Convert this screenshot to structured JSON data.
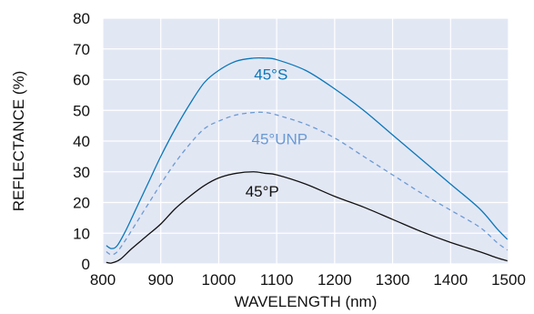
{
  "chart_data": {
    "type": "line",
    "title": "",
    "xlabel": "WAVELENGTH (nm)",
    "ylabel": "REFLECTANCE (%)",
    "xlim": [
      800,
      1500
    ],
    "ylim": [
      0,
      80
    ],
    "xticks": [
      800,
      900,
      1000,
      1100,
      1200,
      1300,
      1400,
      1500
    ],
    "yticks": [
      0,
      10,
      20,
      30,
      40,
      50,
      60,
      70,
      80
    ],
    "grid": true,
    "background_color": "#e2e7f4",
    "grid_color": "#ffffff",
    "series": [
      {
        "name": "45°S",
        "color": "#0b78b9",
        "dash": "solid",
        "label_at": [
          1090,
          60
        ],
        "points": [
          [
            806,
            6
          ],
          [
            815,
            5
          ],
          [
            825,
            6
          ],
          [
            840,
            11
          ],
          [
            860,
            19
          ],
          [
            880,
            27
          ],
          [
            900,
            35
          ],
          [
            925,
            44
          ],
          [
            950,
            52
          ],
          [
            975,
            59
          ],
          [
            1000,
            63
          ],
          [
            1030,
            66
          ],
          [
            1060,
            67
          ],
          [
            1080,
            67
          ],
          [
            1100,
            66.5
          ],
          [
            1150,
            63
          ],
          [
            1200,
            57
          ],
          [
            1250,
            50
          ],
          [
            1300,
            42
          ],
          [
            1350,
            34
          ],
          [
            1400,
            26
          ],
          [
            1450,
            18
          ],
          [
            1480,
            11.5
          ],
          [
            1498,
            8
          ]
        ]
      },
      {
        "name": "45°UNP",
        "color": "#6a9ad4",
        "dash": "dashed",
        "label_at": [
          1105,
          39
        ],
        "points": [
          [
            806,
            4
          ],
          [
            815,
            3
          ],
          [
            825,
            4
          ],
          [
            840,
            8
          ],
          [
            860,
            14
          ],
          [
            880,
            20
          ],
          [
            900,
            26
          ],
          [
            925,
            33
          ],
          [
            950,
            39
          ],
          [
            975,
            44
          ],
          [
            1000,
            46.5
          ],
          [
            1030,
            48.5
          ],
          [
            1060,
            49.3
          ],
          [
            1080,
            49.3
          ],
          [
            1100,
            48.5
          ],
          [
            1150,
            45.5
          ],
          [
            1200,
            41
          ],
          [
            1250,
            35
          ],
          [
            1300,
            29
          ],
          [
            1350,
            23
          ],
          [
            1400,
            17.5
          ],
          [
            1450,
            12
          ],
          [
            1480,
            7
          ],
          [
            1498,
            4.5
          ]
        ]
      },
      {
        "name": "45°P",
        "color": "#111111",
        "dash": "solid",
        "label_at": [
          1075,
          22
        ],
        "points": [
          [
            806,
            0.5
          ],
          [
            815,
            0.3
          ],
          [
            830,
            1.5
          ],
          [
            850,
            5
          ],
          [
            875,
            9
          ],
          [
            900,
            13
          ],
          [
            925,
            18
          ],
          [
            950,
            22
          ],
          [
            975,
            25.5
          ],
          [
            1000,
            28
          ],
          [
            1030,
            29.5
          ],
          [
            1060,
            30
          ],
          [
            1080,
            29.5
          ],
          [
            1100,
            29
          ],
          [
            1150,
            26
          ],
          [
            1200,
            22
          ],
          [
            1250,
            18.5
          ],
          [
            1300,
            14.5
          ],
          [
            1350,
            10.5
          ],
          [
            1400,
            7
          ],
          [
            1450,
            4
          ],
          [
            1480,
            2
          ],
          [
            1498,
            1
          ]
        ]
      }
    ]
  }
}
